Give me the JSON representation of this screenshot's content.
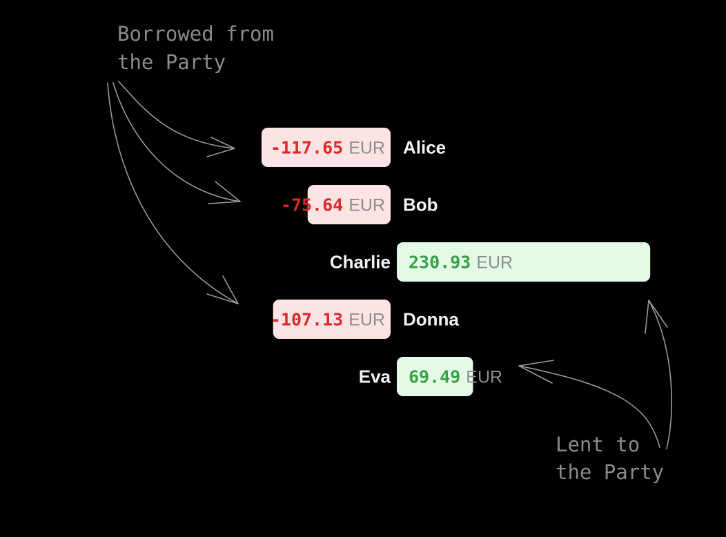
{
  "annotations": {
    "borrowed_line1": "Borrowed from",
    "borrowed_line2": "the Party",
    "lent_line1": "Lent to",
    "lent_line2": "the Party"
  },
  "colors": {
    "background": "#000000",
    "negative_fill": "#fde4e4",
    "negative_text": "#d92a2a",
    "positive_fill": "#e3fbe6",
    "positive_text": "#3aa048",
    "name_text": "#f2f2f2",
    "currency_text": "#8d8d8d",
    "annotation": "#8a8a8a"
  },
  "chart_data": {
    "type": "bar",
    "orientation": "horizontal-diverging",
    "currency": "EUR",
    "categories": [
      "Alice",
      "Bob",
      "Charlie",
      "Donna",
      "Eva"
    ],
    "values": [
      -117.65,
      -75.64,
      230.93,
      -107.13,
      69.49
    ],
    "labels": [
      "-117.65",
      "-75.64",
      "230.93",
      "-107.13",
      "69.49"
    ],
    "title": "",
    "xlabel": "",
    "ylabel": ""
  }
}
